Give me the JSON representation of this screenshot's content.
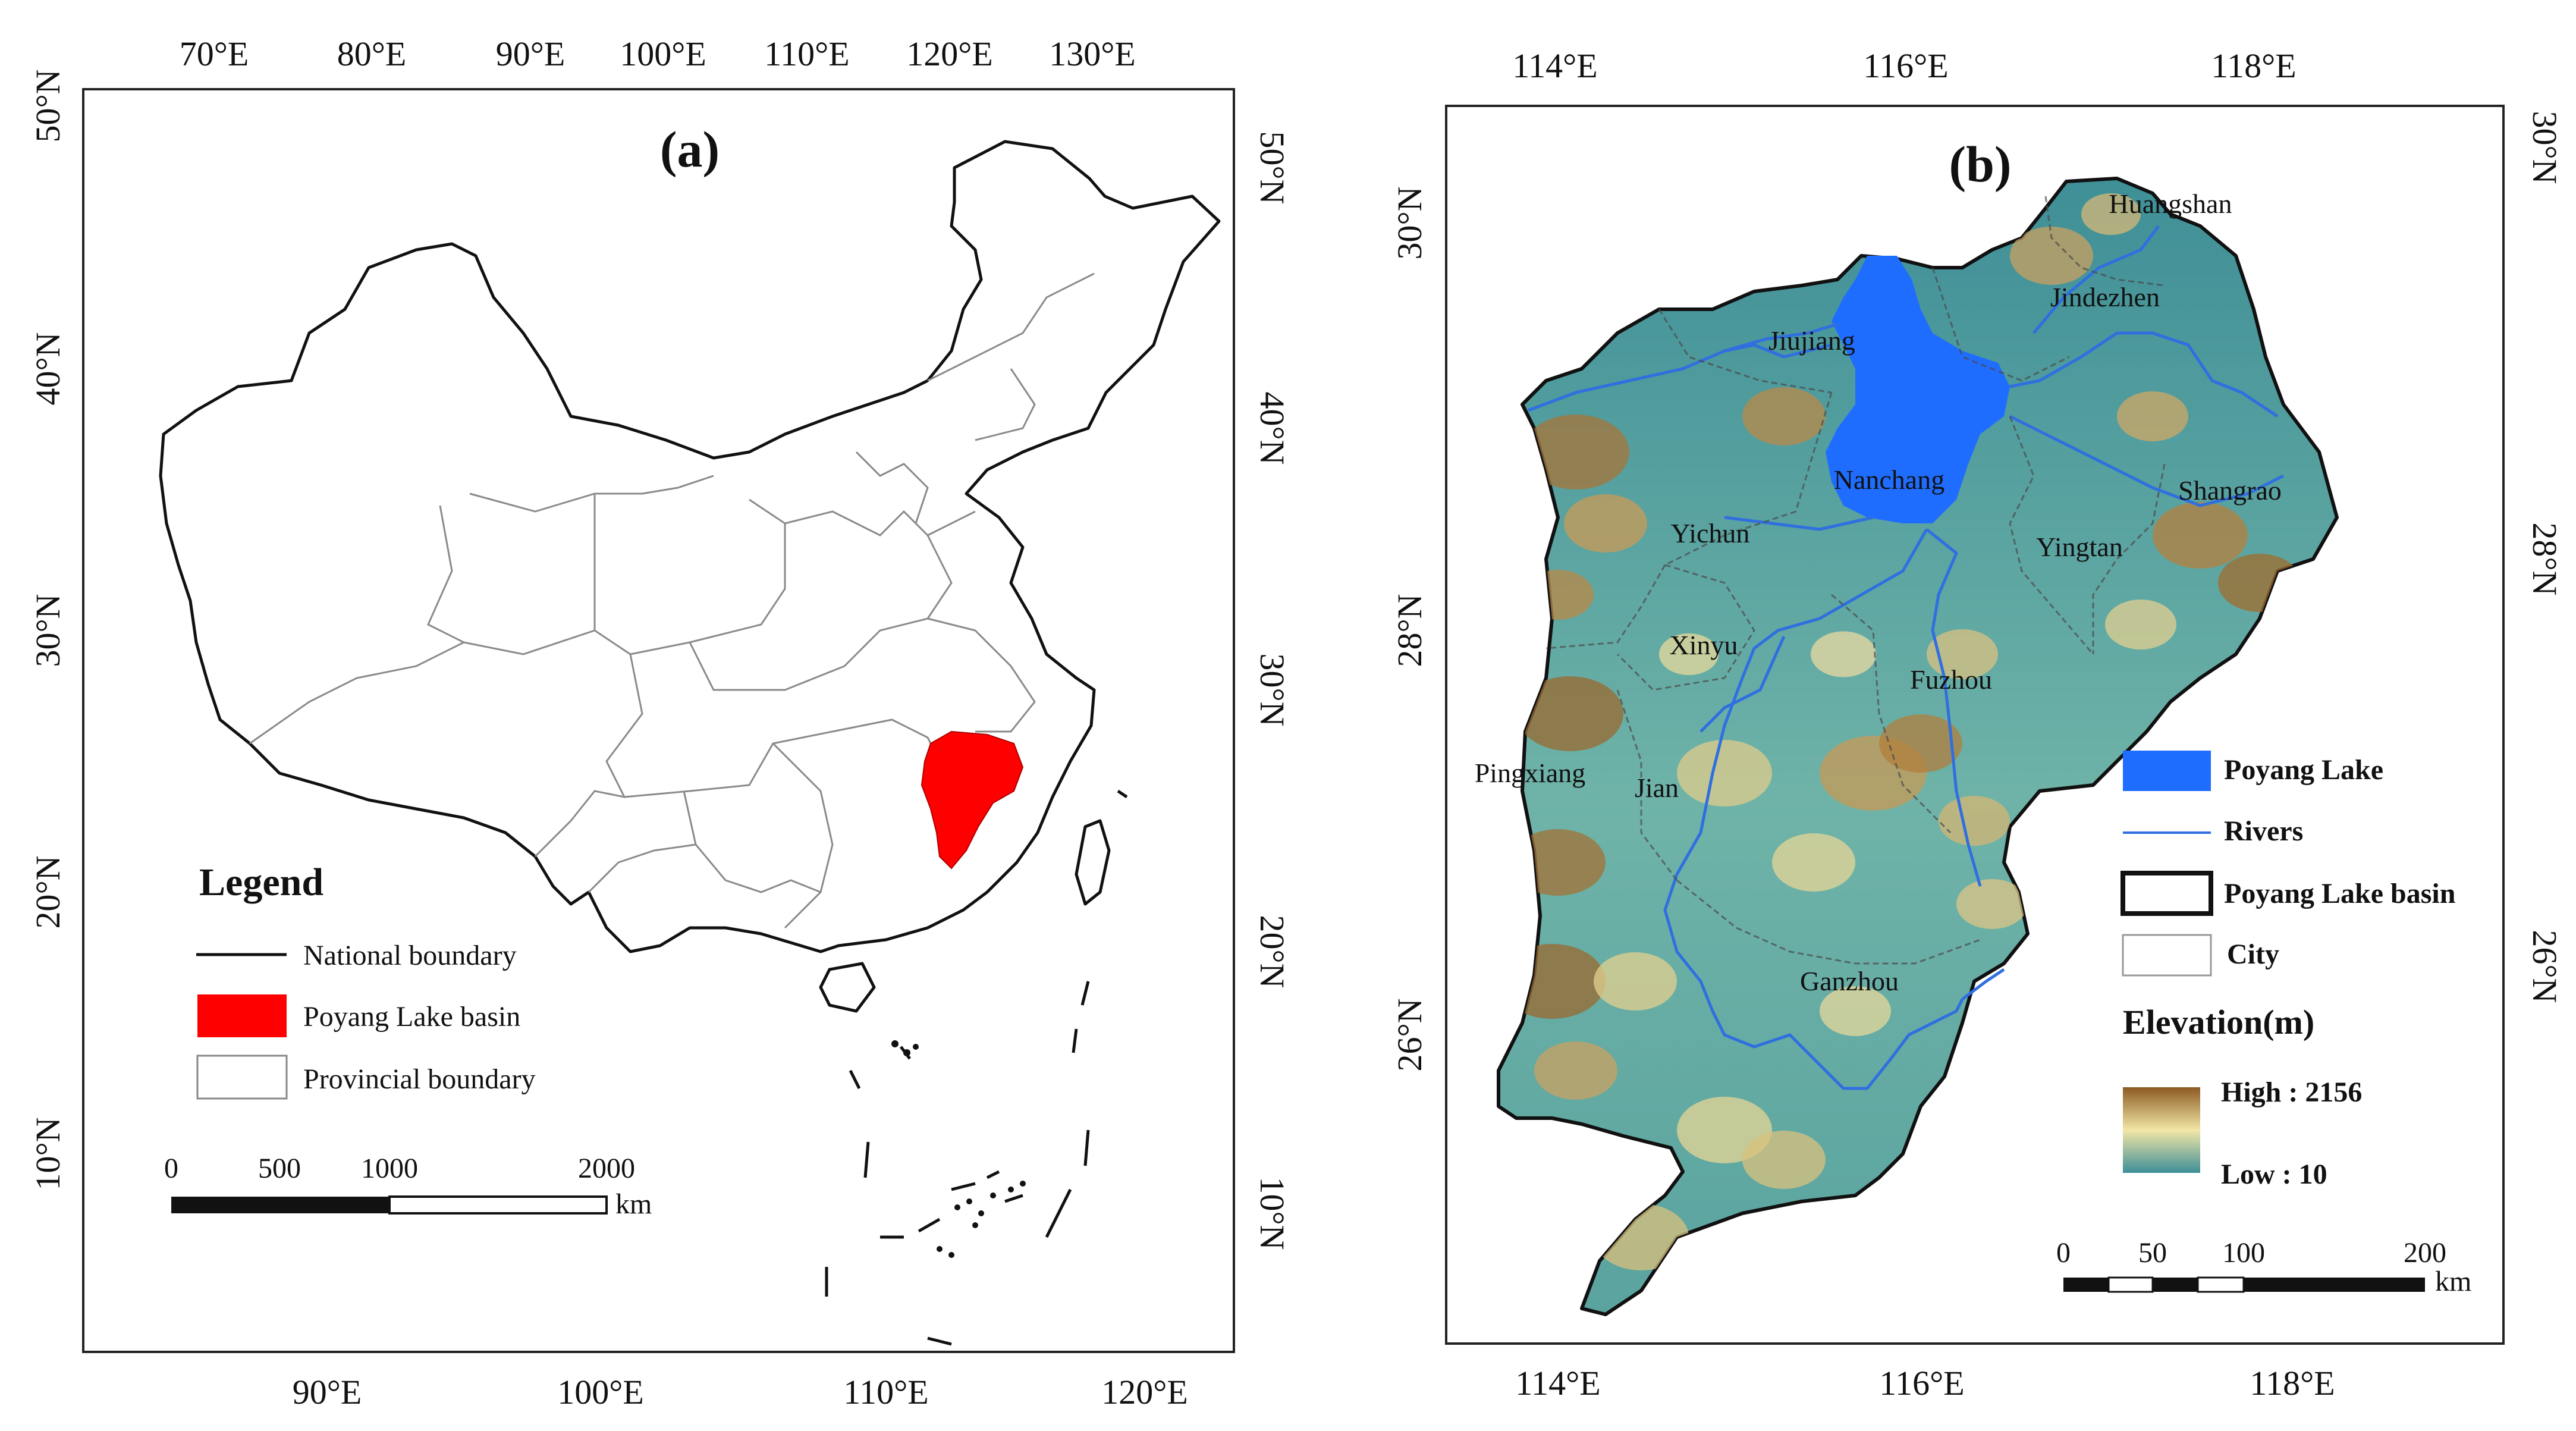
{
  "panel_a": {
    "label": "(a)",
    "top_ticks": [
      "70°E",
      "80°E",
      "90°E",
      "100°E",
      "110°E",
      "120°E",
      "130°E"
    ],
    "bottom_ticks": [
      "90°E",
      "100°E",
      "110°E",
      "120°E"
    ],
    "left_ticks": [
      "50°N",
      "40°N",
      "30°N",
      "20°N",
      "10°N"
    ],
    "right_ticks": [
      "50°N",
      "40°N",
      "30°N",
      "20°N",
      "10°N"
    ],
    "legend": {
      "title": "Legend",
      "items": [
        {
          "label": "National boundary",
          "symbol": "line"
        },
        {
          "label": "Poyang Lake basin",
          "symbol": "fill",
          "color": "#ff0000"
        },
        {
          "label": "Provincial boundary",
          "symbol": "box"
        }
      ]
    },
    "scalebar": {
      "labels": [
        "0",
        "500",
        "1000",
        "2000"
      ],
      "unit": "km"
    },
    "colors": {
      "basin": "#ff0000"
    }
  },
  "panel_b": {
    "label": "(b)",
    "top_ticks": [
      "114°E",
      "116°E",
      "118°E"
    ],
    "bottom_ticks": [
      "114°E",
      "116°E",
      "118°E"
    ],
    "left_ticks": [
      "30°N",
      "28°N",
      "26°N"
    ],
    "right_ticks": [
      "30°N",
      "28°N",
      "26°N"
    ],
    "cities": [
      "Huangshan",
      "Jindezhen",
      "Jiujiang",
      "Nanchang",
      "Shangrao",
      "Yichun",
      "Yingtan",
      "Xinyu",
      "Fuzhou",
      "Pingxiang",
      "Jian",
      "Ganzhou"
    ],
    "legend": {
      "items": [
        {
          "label": "Poyang  Lake",
          "symbol": "fill",
          "color": "#1f6dff"
        },
        {
          "label": "Rivers",
          "symbol": "line",
          "color": "#2f6fe0"
        },
        {
          "label": "Poyang Lake basin",
          "symbol": "thickbox"
        },
        {
          "label": "City",
          "symbol": "box"
        }
      ],
      "elevation_title": "Elevation(m)",
      "high_label": "High : 2156",
      "low_label": "Low : 10",
      "high_value": 2156,
      "low_value": 10
    },
    "scalebar": {
      "labels": [
        "0",
        "50",
        "100",
        "200"
      ],
      "unit": "km"
    },
    "colors": {
      "lake": "#1f6dff",
      "river": "#2f6fe0",
      "elev_high": "#8c5a22",
      "elev_mid": "#f2e6a6",
      "elev_low": "#3e8f98"
    }
  }
}
